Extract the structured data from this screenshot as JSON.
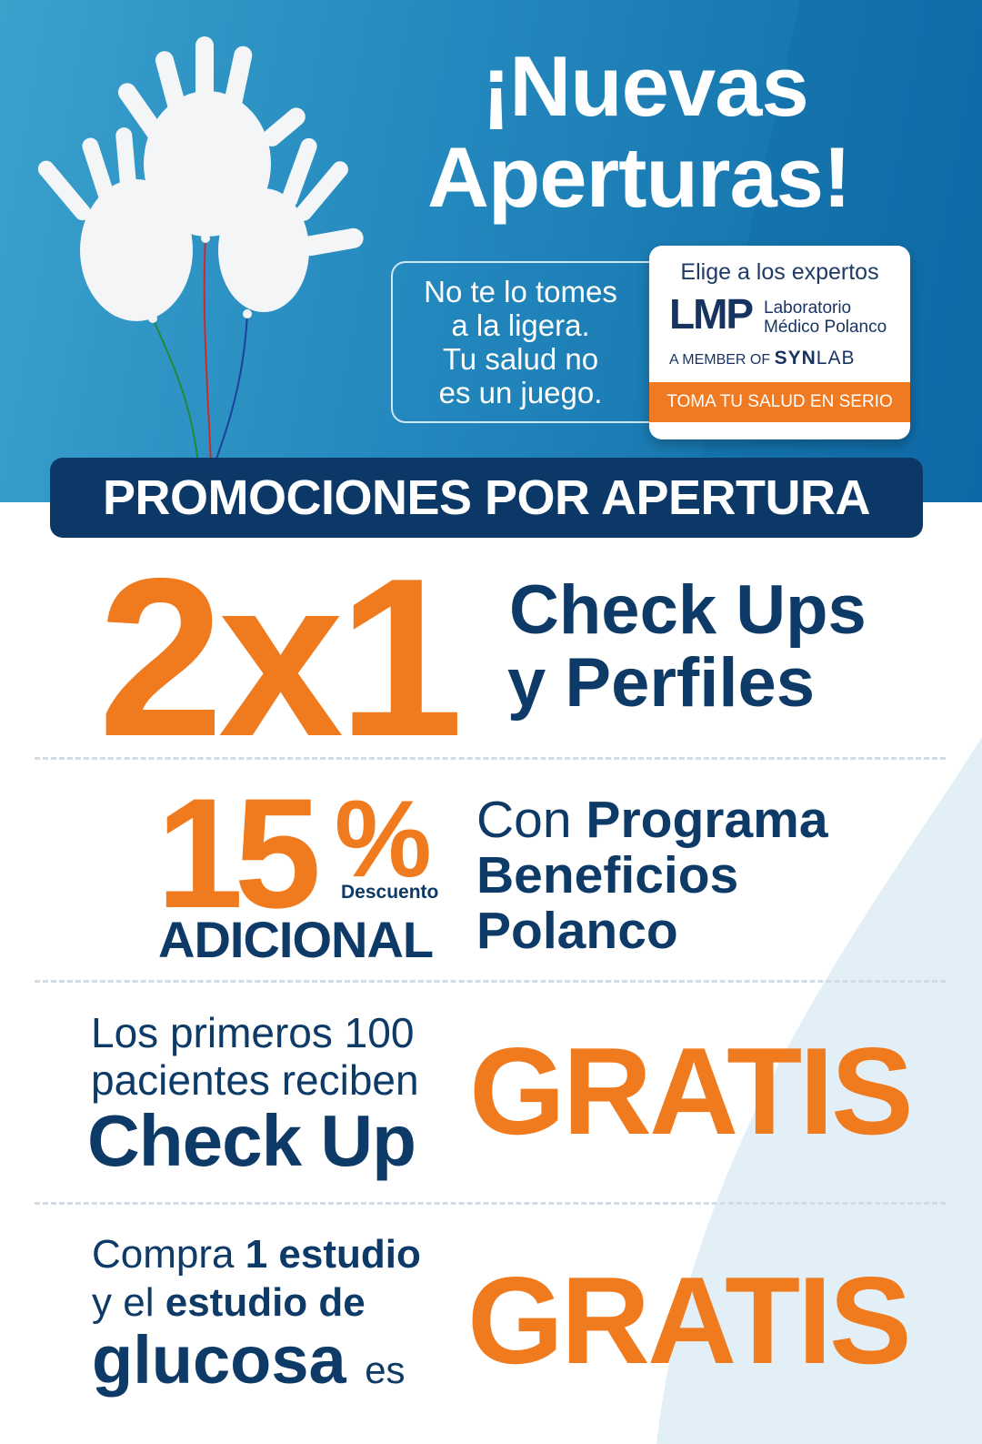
{
  "colors": {
    "brand_blue": "#1a7fb8",
    "navy": "#0d3a66",
    "orange": "#f07a1e",
    "light_blue_shape": "#e3eff7"
  },
  "hero": {
    "title_line1": "¡Nuevas",
    "title_line2": "Aperturas!",
    "balloons_icon": "glove-balloons-icon",
    "tagline": [
      "No te lo tomes",
      "a la ligera.",
      "Tu salud no",
      "es un juego."
    ]
  },
  "card": {
    "heading": "Elige a los expertos",
    "logo": "LMP",
    "lab_line1": "Laboratorio",
    "lab_line2": "Médico Polanco",
    "member_of": "A MEMBER OF",
    "synlab_bold": "SYN",
    "synlab_light": "LAB",
    "slogan": "TOMA TU SALUD EN SERIO"
  },
  "banner": "PROMOCIONES POR APERTURA",
  "promos": {
    "p1": {
      "big": "2x1",
      "line1": "Check Ups",
      "line2": "y Perfiles"
    },
    "p2": {
      "number": "15",
      "percent": "%",
      "descuento": "Descuento",
      "adicional": "ADICIONAL",
      "con": "Con",
      "programa": "Programa",
      "beneficios": "Beneficios",
      "polanco": "Polanco"
    },
    "p3": {
      "line1": "Los primeros 100",
      "line2": "pacientes reciben",
      "line3": "Check Up",
      "gratis": "GRATIS"
    },
    "p4": {
      "compra": "Compra",
      "estudio1": "1 estudio",
      "y_el": "y el",
      "estudio_de": "estudio de",
      "glucosa": "glucosa",
      "es": "es",
      "gratis": "GRATIS"
    }
  }
}
